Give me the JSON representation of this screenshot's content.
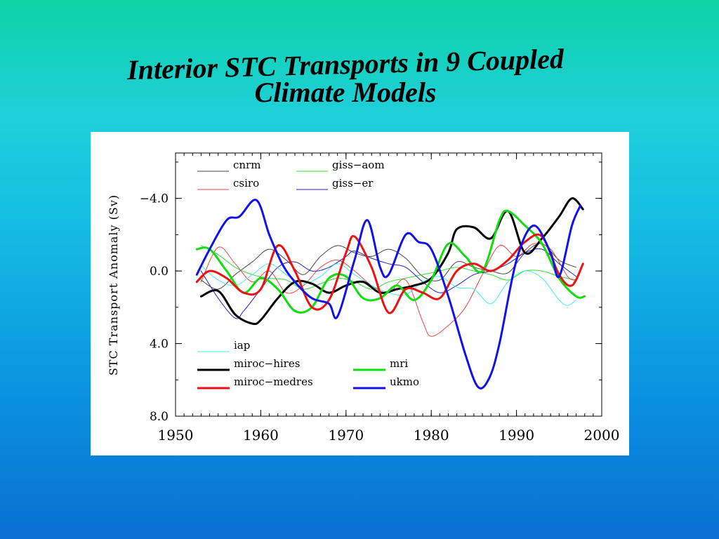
{
  "slide": {
    "title_line1": "Interior STC Transports in 9 Coupled",
    "title_line2": "Climate Models"
  },
  "chart_data": {
    "type": "line",
    "ylabel": "STC Transport Anomaly (Sv)",
    "xlim": [
      1950,
      2000
    ],
    "ylim": [
      -6.5,
      8.0
    ],
    "y_inverted": true,
    "x_ticks": [
      1950,
      1960,
      1970,
      1980,
      1990,
      2000
    ],
    "x_tick_labels": [
      "1950",
      "1960",
      "1970",
      "1980",
      "1990",
      "2000"
    ],
    "y_ticks": [
      -4.0,
      0.0,
      4.0,
      8.0
    ],
    "y_tick_labels": [
      "−4.0",
      "0.0",
      "4.0",
      "8.0"
    ],
    "legend_top": [
      "cnrm",
      "giss−aom",
      "csiro",
      "giss−er"
    ],
    "legend_bottom": [
      "iap",
      "miroc−hires",
      "mri",
      "miroc−medres",
      "ukmo"
    ],
    "series": [
      {
        "name": "cnrm",
        "color": "#444444",
        "width": 1,
        "x": [
          1953,
          1955,
          1957,
          1959,
          1961,
          1963,
          1965,
          1967,
          1969,
          1971,
          1973,
          1975,
          1977,
          1979,
          1981,
          1983,
          1985,
          1987,
          1989,
          1991,
          1993,
          1995,
          1997
        ],
        "y": [
          0.5,
          1.0,
          0.2,
          -0.5,
          -1.2,
          -0.6,
          0.2,
          -0.8,
          -1.4,
          -1.0,
          -0.8,
          -1.2,
          -0.7,
          0.3,
          0.5,
          -0.5,
          -0.2,
          0.0,
          0.1,
          -1.0,
          -1.5,
          -0.6,
          -0.2
        ]
      },
      {
        "name": "giss−aom",
        "color": "#33dd33",
        "width": 1,
        "x": [
          1953,
          1955,
          1957,
          1959,
          1961,
          1963,
          1965,
          1967,
          1969,
          1971,
          1973,
          1975,
          1977,
          1979,
          1981,
          1983,
          1985,
          1987,
          1989,
          1991,
          1993,
          1995,
          1997
        ],
        "y": [
          -1.4,
          -0.9,
          -0.2,
          0.2,
          0.4,
          0.5,
          1.0,
          0.7,
          0.4,
          0.6,
          1.0,
          0.6,
          0.4,
          0.2,
          0.0,
          -0.2,
          0.0,
          0.2,
          0.5,
          0.0,
          0.0,
          0.3,
          0.5
        ]
      },
      {
        "name": "csiro",
        "color": "#ee4444",
        "width": 1,
        "x": [
          1953,
          1955,
          1957,
          1959,
          1961,
          1963,
          1965,
          1967,
          1969,
          1971,
          1973,
          1975,
          1977,
          1979,
          1980,
          1982,
          1984,
          1986,
          1988,
          1990,
          1992,
          1994,
          1996,
          1997
        ],
        "y": [
          0.6,
          -1.3,
          -0.4,
          0.6,
          0.0,
          1.2,
          0.8,
          -0.2,
          -0.6,
          0.0,
          0.8,
          1.2,
          0.5,
          2.8,
          3.6,
          3.0,
          2.0,
          0.2,
          -1.4,
          -0.8,
          -1.5,
          -1.2,
          0.3,
          0.5
        ]
      },
      {
        "name": "giss−er",
        "color": "#2222cc",
        "width": 1,
        "x": [
          1953,
          1955,
          1957,
          1958,
          1960,
          1962,
          1964,
          1966,
          1968,
          1970,
          1971,
          1973,
          1975,
          1977,
          1979,
          1981,
          1983,
          1985,
          1987,
          1989,
          1991,
          1993,
          1995,
          1997
        ],
        "y": [
          0.0,
          1.5,
          2.6,
          2.2,
          1.0,
          -0.2,
          -0.5,
          0.0,
          -0.2,
          -0.8,
          -1.1,
          -0.7,
          -0.4,
          -0.2,
          0.6,
          1.2,
          0.8,
          0.2,
          0.0,
          -0.4,
          -1.0,
          -1.2,
          -0.4,
          0.3
        ]
      },
      {
        "name": "iap",
        "color": "#44eeee",
        "width": 1,
        "x": [
          1953,
          1955,
          1957,
          1959,
          1961,
          1963,
          1965,
          1967,
          1969,
          1971,
          1973,
          1975,
          1977,
          1979,
          1981,
          1983,
          1985,
          1987,
          1989,
          1991,
          1993,
          1995,
          1996,
          1997
        ],
        "y": [
          -0.3,
          0.5,
          0.8,
          0.2,
          -0.4,
          0.2,
          0.7,
          0.3,
          -0.4,
          0.2,
          0.8,
          1.2,
          1.3,
          0.6,
          0.3,
          0.9,
          1.0,
          1.8,
          0.6,
          0.0,
          0.4,
          1.6,
          1.9,
          1.6
        ]
      },
      {
        "name": "miroc−hires",
        "color": "#000000",
        "width": 3,
        "x": [
          1953,
          1955,
          1957,
          1959,
          1960,
          1962,
          1964,
          1966,
          1968,
          1970,
          1972,
          1974,
          1976,
          1978,
          1980,
          1982,
          1983,
          1985,
          1987,
          1989,
          1991,
          1993,
          1995,
          1996.5,
          1997.8
        ],
        "y": [
          1.4,
          1.1,
          2.4,
          2.9,
          2.7,
          1.5,
          0.6,
          0.7,
          1.2,
          0.8,
          0.6,
          1.2,
          1.0,
          0.8,
          0.4,
          -1.0,
          -2.3,
          -2.4,
          -1.8,
          -3.3,
          -1.0,
          -1.8,
          -3.0,
          -4.0,
          -3.4
        ]
      },
      {
        "name": "mri",
        "color": "#11dd11",
        "width": 3,
        "x": [
          1952.5,
          1954,
          1956,
          1958,
          1960,
          1962,
          1964,
          1966,
          1968,
          1970,
          1972,
          1974,
          1976,
          1978,
          1980,
          1982,
          1984,
          1986,
          1988,
          1989,
          1991,
          1993,
          1995,
          1997,
          1998
        ],
        "y": [
          -1.2,
          -1.2,
          0.0,
          1.2,
          0.4,
          1.0,
          2.2,
          2.0,
          0.4,
          0.3,
          1.5,
          1.5,
          0.8,
          1.6,
          0.5,
          -1.5,
          -0.8,
          0.0,
          -2.8,
          -3.3,
          -2.5,
          -1.5,
          0.4,
          1.4,
          1.4
        ]
      },
      {
        "name": "miroc−medres",
        "color": "#ee1111",
        "width": 3,
        "x": [
          1952.5,
          1954,
          1956,
          1958,
          1960,
          1962,
          1964,
          1966,
          1968,
          1970,
          1971,
          1973,
          1975,
          1977,
          1979,
          1981,
          1983,
          1985,
          1987,
          1989,
          1991,
          1993,
          1995,
          1996.5,
          1997.8
        ],
        "y": [
          0.6,
          0.0,
          0.4,
          1.2,
          1.0,
          -1.4,
          0.0,
          2.0,
          1.6,
          -1.0,
          -1.9,
          -0.2,
          2.3,
          1.0,
          1.2,
          1.5,
          0.0,
          -0.4,
          0.0,
          -0.6,
          -1.6,
          -1.9,
          0.2,
          0.8,
          -0.4
        ]
      },
      {
        "name": "ukmo",
        "color": "#1111ee",
        "width": 3,
        "x": [
          1952.5,
          1954,
          1956,
          1957.5,
          1959.5,
          1961,
          1962.5,
          1964,
          1966,
          1968,
          1969,
          1971,
          1972.5,
          1974,
          1975,
          1977,
          1978.5,
          1980,
          1982,
          1984,
          1985.5,
          1986.8,
          1988,
          1990,
          1992,
          1994,
          1995,
          1996.5,
          1997.5
        ],
        "y": [
          0.2,
          -1.2,
          -2.8,
          -3.0,
          -3.9,
          -2.0,
          -0.4,
          0.6,
          1.5,
          1.8,
          2.5,
          -0.6,
          -2.8,
          -0.2,
          0.2,
          -2.0,
          -1.6,
          -1.2,
          1.4,
          4.6,
          6.4,
          5.9,
          4.0,
          -0.6,
          -2.5,
          -1.0,
          0.3,
          -2.5,
          -3.6
        ]
      }
    ]
  }
}
